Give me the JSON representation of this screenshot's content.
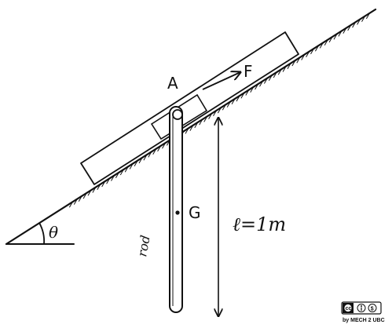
{
  "diagram": {
    "block_label": "A",
    "force_label": "F",
    "center_label": "G",
    "rod_label": "rod",
    "length_label": "ℓ=1m",
    "angle_label": "θ"
  },
  "license": {
    "badge": "cc ⓘ $",
    "credit": "by MECH 2 UBC"
  },
  "colors": {
    "ink": "#111111",
    "background": "#ffffff"
  }
}
